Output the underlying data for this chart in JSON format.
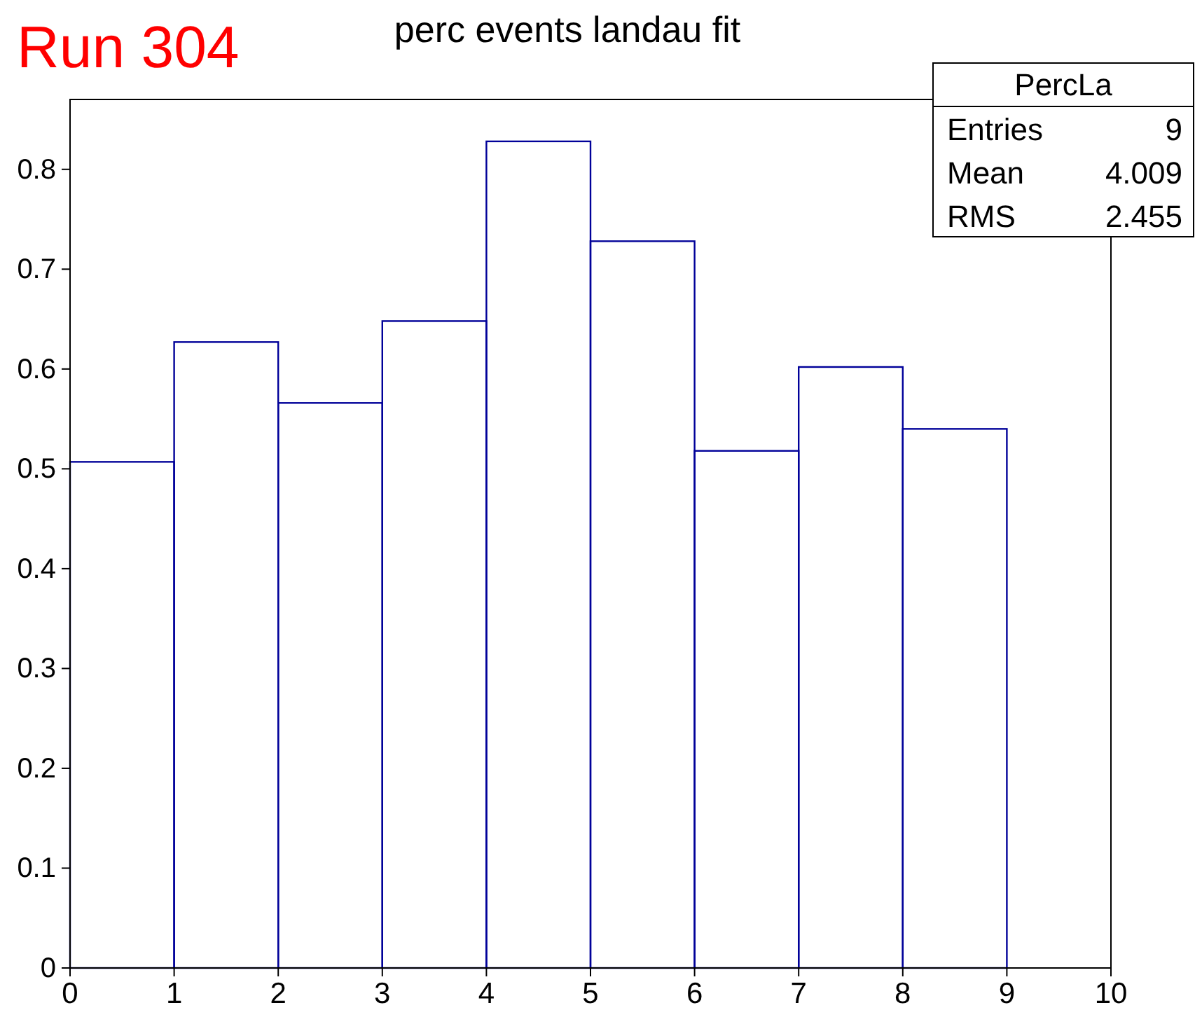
{
  "chart_data": {
    "type": "histogram",
    "title": "perc events landau fit",
    "bins": [
      0,
      1,
      2,
      3,
      4,
      5,
      6,
      7,
      8,
      9
    ],
    "values": [
      0.507,
      0.627,
      0.566,
      0.648,
      0.828,
      0.728,
      0.518,
      0.602,
      0.54
    ],
    "color": "#000099",
    "xlim": [
      0,
      10
    ],
    "xticks": [
      0,
      1,
      2,
      3,
      4,
      5,
      6,
      7,
      8,
      9,
      10
    ],
    "ylim": [
      0,
      0.87
    ],
    "yticks": [
      0,
      0.1,
      0.2,
      0.3,
      0.4,
      0.5,
      0.6,
      0.7,
      0.8
    ],
    "grid": false,
    "annotations": [
      "Run 304",
      "PercLa",
      "Entries",
      "9",
      "Mean",
      "4.009",
      "RMS",
      "2.455"
    ]
  }
}
